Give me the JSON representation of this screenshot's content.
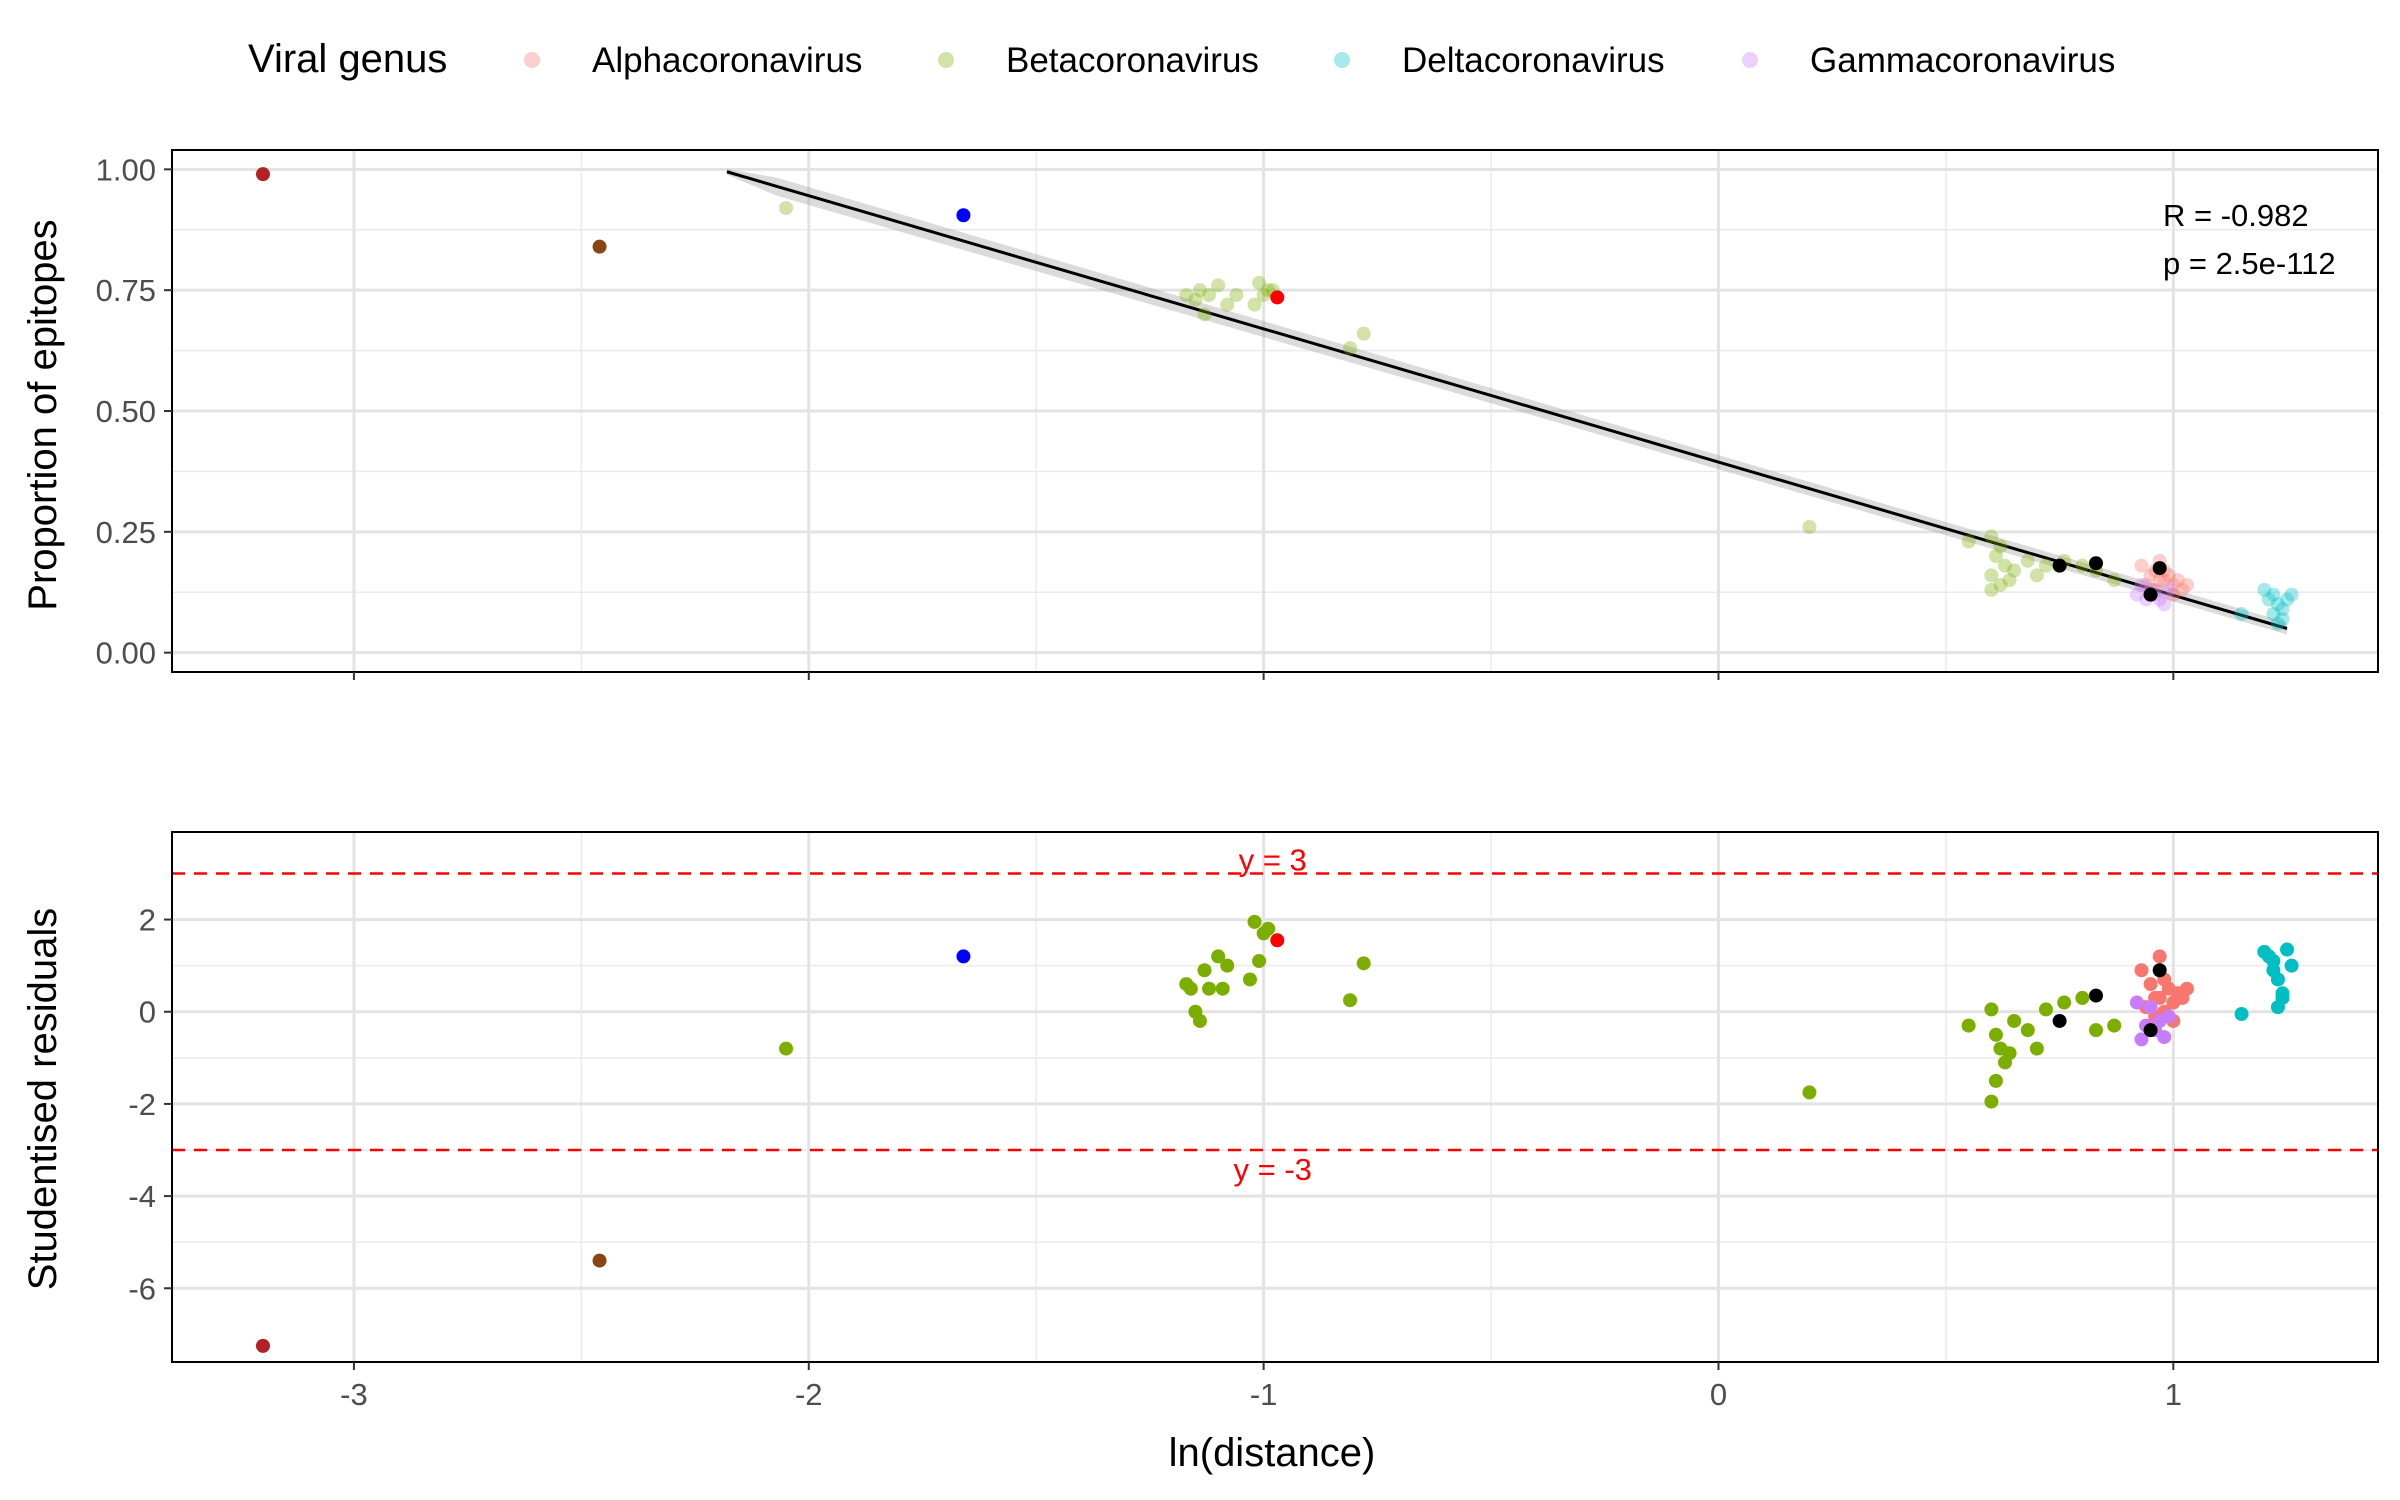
{
  "legend": {
    "title": "Viral genus",
    "items": [
      {
        "label": "Alphacoronavirus",
        "color": "#F8766D"
      },
      {
        "label": "Betacoronavirus",
        "color": "#7CAE00"
      },
      {
        "label": "Deltacoronavirus",
        "color": "#00BFC4"
      },
      {
        "label": "Gammacoronavirus",
        "color": "#C77CFF"
      }
    ]
  },
  "x_axis": {
    "label": "ln(distance)",
    "range": [
      -3.4,
      1.45
    ],
    "ticks": [
      -3,
      -2,
      -1,
      0,
      1
    ]
  },
  "chart_data": [
    {
      "type": "scatter",
      "ylabel": "Proportion of epitopes",
      "ylim": [
        -0.04,
        1.04
      ],
      "yticks": [
        "0.00",
        "0.25",
        "0.50",
        "0.75",
        "1.00"
      ],
      "ytick_values": [
        0,
        0.25,
        0.5,
        0.75,
        1.0
      ],
      "grid": true,
      "annotation": [
        "R = -0.982",
        "p = 2.5e-112"
      ],
      "fit_line": {
        "x": [
          -2.18,
          1.25
        ],
        "y": [
          0.995,
          0.05
        ]
      },
      "series": [
        {
          "name": "Alphacoronavirus",
          "color": "#F8766D",
          "alpha": 0.35,
          "points": [
            [
              0.93,
              0.18
            ],
            [
              0.95,
              0.16
            ],
            [
              0.96,
              0.17
            ],
            [
              0.97,
              0.19
            ],
            [
              0.98,
              0.15
            ],
            [
              0.99,
              0.16
            ],
            [
              1.0,
              0.14
            ],
            [
              1.01,
              0.15
            ],
            [
              1.02,
              0.13
            ],
            [
              1.03,
              0.14
            ],
            [
              0.94,
              0.14
            ],
            [
              0.96,
              0.13
            ],
            [
              0.98,
              0.17
            ],
            [
              1.0,
              0.12
            ],
            [
              0.97,
              0.15
            ]
          ]
        },
        {
          "name": "Betacoronavirus",
          "color": "#7CAE00",
          "alpha": 0.35,
          "points": [
            [
              -2.05,
              0.92
            ],
            [
              -1.17,
              0.74
            ],
            [
              -1.15,
              0.73
            ],
            [
              -1.14,
              0.75
            ],
            [
              -1.13,
              0.7
            ],
            [
              -1.12,
              0.74
            ],
            [
              -1.1,
              0.76
            ],
            [
              -1.08,
              0.72
            ],
            [
              -1.06,
              0.74
            ],
            [
              -1.02,
              0.72
            ],
            [
              -1.01,
              0.765
            ],
            [
              -0.99,
              0.75
            ],
            [
              -1.0,
              0.74
            ],
            [
              -0.98,
              0.75
            ],
            [
              -0.81,
              0.63
            ],
            [
              -0.78,
              0.66
            ],
            [
              0.2,
              0.26
            ],
            [
              0.55,
              0.23
            ],
            [
              0.6,
              0.24
            ],
            [
              0.61,
              0.2
            ],
            [
              0.62,
              0.22
            ],
            [
              0.63,
              0.18
            ],
            [
              0.6,
              0.16
            ],
            [
              0.62,
              0.14
            ],
            [
              0.65,
              0.17
            ],
            [
              0.68,
              0.19
            ],
            [
              0.7,
              0.16
            ],
            [
              0.72,
              0.18
            ],
            [
              0.76,
              0.19
            ],
            [
              0.8,
              0.18
            ],
            [
              0.83,
              0.17
            ],
            [
              0.87,
              0.15
            ],
            [
              0.6,
              0.13
            ],
            [
              0.64,
              0.15
            ]
          ]
        },
        {
          "name": "Deltacoronavirus",
          "color": "#00BFC4",
          "alpha": 0.35,
          "points": [
            [
              1.15,
              0.08
            ],
            [
              1.2,
              0.13
            ],
            [
              1.21,
              0.11
            ],
            [
              1.22,
              0.12
            ],
            [
              1.23,
              0.1
            ],
            [
              1.24,
              0.09
            ],
            [
              1.25,
              0.11
            ],
            [
              1.22,
              0.08
            ],
            [
              1.24,
              0.07
            ],
            [
              1.26,
              0.12
            ],
            [
              1.23,
              0.06
            ]
          ]
        },
        {
          "name": "Gammacoronavirus",
          "color": "#C77CFF",
          "alpha": 0.35,
          "points": [
            [
              0.92,
              0.12
            ],
            [
              0.93,
              0.14
            ],
            [
              0.94,
              0.11
            ],
            [
              0.95,
              0.13
            ],
            [
              0.96,
              0.12
            ],
            [
              0.97,
              0.11
            ],
            [
              0.98,
              0.1
            ],
            [
              0.99,
              0.13
            ]
          ]
        },
        {
          "name": "",
          "color": "#000000",
          "alpha": 1,
          "points": [
            [
              0.75,
              0.18
            ],
            [
              0.83,
              0.185
            ],
            [
              0.97,
              0.175
            ],
            [
              0.95,
              0.12
            ]
          ]
        },
        {
          "name": "",
          "color": "#B22222",
          "alpha": 1,
          "points": [
            [
              -3.2,
              0.99
            ]
          ]
        },
        {
          "name": "",
          "color": "#8B4513",
          "alpha": 1,
          "points": [
            [
              -2.46,
              0.84
            ]
          ]
        },
        {
          "name": "",
          "color": "#0000FF",
          "alpha": 1,
          "points": [
            [
              -1.66,
              0.905
            ]
          ]
        },
        {
          "name": "",
          "color": "#FF0000",
          "alpha": 1,
          "points": [
            [
              -0.97,
              0.735
            ]
          ]
        }
      ]
    },
    {
      "type": "scatter",
      "ylabel": "Studentised residuals",
      "ylim": [
        -7.6,
        3.9
      ],
      "yticks": [
        "-6",
        "-4",
        "-2",
        "0",
        "2"
      ],
      "ytick_values": [
        -6,
        -4,
        -2,
        0,
        2
      ],
      "grid": true,
      "hlines": [
        {
          "y": 3,
          "label": "y = 3",
          "color": "#FF0000"
        },
        {
          "y": -3,
          "label": "y = -3",
          "color": "#FF0000"
        }
      ],
      "series": [
        {
          "name": "Alphacoronavirus",
          "color": "#F8766D",
          "alpha": 1,
          "points": [
            [
              0.93,
              0.9
            ],
            [
              0.95,
              0.6
            ],
            [
              0.96,
              0.3
            ],
            [
              0.97,
              1.2
            ],
            [
              0.98,
              0.0
            ],
            [
              0.99,
              0.5
            ],
            [
              1.0,
              0.2
            ],
            [
              1.01,
              0.4
            ],
            [
              1.02,
              0.3
            ],
            [
              1.03,
              0.5
            ],
            [
              0.94,
              0.1
            ],
            [
              0.96,
              -0.1
            ],
            [
              0.98,
              0.7
            ],
            [
              1.0,
              -0.2
            ],
            [
              0.97,
              0.3
            ]
          ]
        },
        {
          "name": "Betacoronavirus",
          "color": "#7CAE00",
          "alpha": 1,
          "points": [
            [
              -2.05,
              -0.8
            ],
            [
              -1.17,
              0.6
            ],
            [
              -1.16,
              0.5
            ],
            [
              -1.15,
              0.0
            ],
            [
              -1.14,
              -0.2
            ],
            [
              -1.13,
              0.9
            ],
            [
              -1.12,
              0.5
            ],
            [
              -1.1,
              1.2
            ],
            [
              -1.09,
              0.5
            ],
            [
              -1.08,
              1.0
            ],
            [
              -1.03,
              0.7
            ],
            [
              -1.02,
              1.95
            ],
            [
              -1.01,
              1.1
            ],
            [
              -1.0,
              1.7
            ],
            [
              -0.99,
              1.8
            ],
            [
              -0.81,
              0.25
            ],
            [
              -0.78,
              1.05
            ],
            [
              0.2,
              -1.75
            ],
            [
              0.55,
              -0.3
            ],
            [
              0.6,
              0.05
            ],
            [
              0.61,
              -0.5
            ],
            [
              0.62,
              -0.8
            ],
            [
              0.63,
              -1.1
            ],
            [
              0.6,
              -1.95
            ],
            [
              0.61,
              -1.5
            ],
            [
              0.64,
              -0.9
            ],
            [
              0.65,
              -0.2
            ],
            [
              0.68,
              -0.4
            ],
            [
              0.7,
              -0.8
            ],
            [
              0.72,
              0.05
            ],
            [
              0.76,
              0.2
            ],
            [
              0.8,
              0.3
            ],
            [
              0.83,
              -0.4
            ],
            [
              0.87,
              -0.3
            ]
          ]
        },
        {
          "name": "Deltacoronavirus",
          "color": "#00BFC4",
          "alpha": 1,
          "points": [
            [
              1.15,
              -0.05
            ],
            [
              1.2,
              1.3
            ],
            [
              1.21,
              1.2
            ],
            [
              1.22,
              1.1
            ],
            [
              1.23,
              0.7
            ],
            [
              1.24,
              0.4
            ],
            [
              1.25,
              1.35
            ],
            [
              1.22,
              0.9
            ],
            [
              1.23,
              0.1
            ],
            [
              1.26,
              1.0
            ],
            [
              1.24,
              0.3
            ]
          ]
        },
        {
          "name": "Gammacoronavirus",
          "color": "#C77CFF",
          "alpha": 1,
          "points": [
            [
              0.92,
              0.2
            ],
            [
              0.93,
              -0.6
            ],
            [
              0.94,
              -0.3
            ],
            [
              0.95,
              0.1
            ],
            [
              0.96,
              -0.4
            ],
            [
              0.97,
              -0.2
            ],
            [
              0.98,
              -0.55
            ],
            [
              0.99,
              -0.1
            ]
          ]
        },
        {
          "name": "",
          "color": "#000000",
          "alpha": 1,
          "points": [
            [
              0.75,
              -0.2
            ],
            [
              0.83,
              0.35
            ],
            [
              0.97,
              0.9
            ],
            [
              0.95,
              -0.4
            ]
          ]
        },
        {
          "name": "",
          "color": "#B22222",
          "alpha": 1,
          "points": [
            [
              -3.2,
              -7.25
            ]
          ]
        },
        {
          "name": "",
          "color": "#8B4513",
          "alpha": 1,
          "points": [
            [
              -2.46,
              -5.4
            ]
          ]
        },
        {
          "name": "",
          "color": "#0000FF",
          "alpha": 1,
          "points": [
            [
              -1.66,
              1.2
            ]
          ]
        },
        {
          "name": "",
          "color": "#FF0000",
          "alpha": 1,
          "points": [
            [
              -0.97,
              1.55
            ]
          ]
        }
      ]
    }
  ]
}
